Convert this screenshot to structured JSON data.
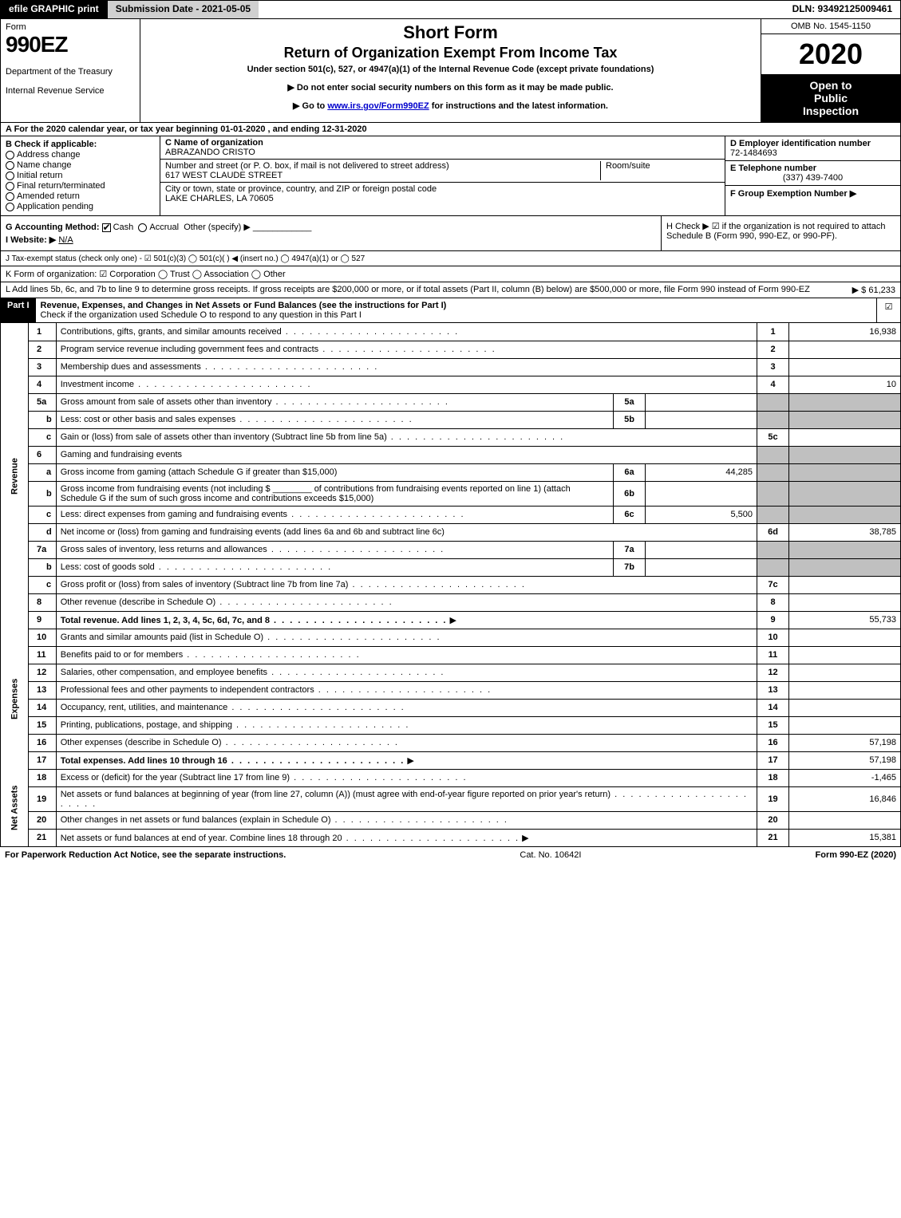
{
  "topbar": {
    "efile": "efile GRAPHIC print",
    "submission_label": "Submission Date - 2021-05-05",
    "dln": "DLN: 93492125009461"
  },
  "header": {
    "form_word": "Form",
    "form_number": "990EZ",
    "dept1": "Department of the Treasury",
    "dept2": "Internal Revenue Service",
    "title1": "Short Form",
    "title2": "Return of Organization Exempt From Income Tax",
    "under": "Under section 501(c), 527, or 4947(a)(1) of the Internal Revenue Code (except private foundations)",
    "notice1": "▶ Do not enter social security numbers on this form as it may be made public.",
    "notice2_pre": "▶ Go to ",
    "notice2_link": "www.irs.gov/Form990EZ",
    "notice2_post": " for instructions and the latest information.",
    "omb": "OMB No. 1545-1150",
    "year": "2020",
    "open1": "Open to",
    "open2": "Public",
    "open3": "Inspection"
  },
  "A": {
    "text": "A For the 2020 calendar year, or tax year beginning 01-01-2020 , and ending 12-31-2020"
  },
  "B": {
    "label": "B Check if applicable:",
    "opts": [
      "Address change",
      "Name change",
      "Initial return",
      "Final return/terminated",
      "Amended return",
      "Application pending"
    ]
  },
  "C": {
    "name_lbl": "C Name of organization",
    "name": "ABRAZANDO CRISTO",
    "addr_lbl": "Number and street (or P. O. box, if mail is not delivered to street address)",
    "addr": "617 WEST CLAUDE STREET",
    "room_lbl": "Room/suite",
    "city_lbl": "City or town, state or province, country, and ZIP or foreign postal code",
    "city": "LAKE CHARLES, LA  70605"
  },
  "D": {
    "lbl": "D Employer identification number",
    "val": "72-1484693"
  },
  "E": {
    "lbl": "E Telephone number",
    "val": "(337) 439-7400"
  },
  "F": {
    "lbl": "F Group Exemption Number  ▶"
  },
  "G": {
    "lbl": "G Accounting Method:",
    "cash": "Cash",
    "accrual": "Accrual",
    "other": "Other (specify) ▶"
  },
  "H": {
    "text": "H Check ▶ ☑ if the organization is not required to attach Schedule B (Form 990, 990-EZ, or 990-PF)."
  },
  "I": {
    "lbl": "I Website: ▶",
    "val": "N/A"
  },
  "J": {
    "text": "J Tax-exempt status (check only one) - ☑ 501(c)(3)  ◯ 501(c)(  ) ◀ (insert no.)  ◯ 4947(a)(1) or  ◯ 527"
  },
  "K": {
    "text": "K Form of organization:  ☑ Corporation  ◯ Trust  ◯ Association  ◯ Other"
  },
  "L": {
    "text": "L Add lines 5b, 6c, and 7b to line 9 to determine gross receipts. If gross receipts are $200,000 or more, or if total assets (Part II, column (B) below) are $500,000 or more, file Form 990 instead of Form 990-EZ",
    "arrow": "▶ $ 61,233"
  },
  "partI": {
    "label": "Part I",
    "title": "Revenue, Expenses, and Changes in Net Assets or Fund Balances (see the instructions for Part I)",
    "sub": "Check if the organization used Schedule O to respond to any question in this Part I",
    "checked": "☑"
  },
  "sections": {
    "revenue": "Revenue",
    "expenses": "Expenses",
    "netassets": "Net Assets"
  },
  "lines": {
    "l1": {
      "n": "1",
      "d": "Contributions, gifts, grants, and similar amounts received",
      "rn": "1",
      "rv": "16,938"
    },
    "l2": {
      "n": "2",
      "d": "Program service revenue including government fees and contracts",
      "rn": "2",
      "rv": ""
    },
    "l3": {
      "n": "3",
      "d": "Membership dues and assessments",
      "rn": "3",
      "rv": ""
    },
    "l4": {
      "n": "4",
      "d": "Investment income",
      "rn": "4",
      "rv": "10"
    },
    "l5a": {
      "n": "5a",
      "d": "Gross amount from sale of assets other than inventory",
      "in": "5a",
      "iv": ""
    },
    "l5b": {
      "n": "b",
      "d": "Less: cost or other basis and sales expenses",
      "in": "5b",
      "iv": ""
    },
    "l5c": {
      "n": "c",
      "d": "Gain or (loss) from sale of assets other than inventory (Subtract line 5b from line 5a)",
      "rn": "5c",
      "rv": ""
    },
    "l6": {
      "n": "6",
      "d": "Gaming and fundraising events"
    },
    "l6a": {
      "n": "a",
      "d": "Gross income from gaming (attach Schedule G if greater than $15,000)",
      "in": "6a",
      "iv": "44,285"
    },
    "l6b": {
      "n": "b",
      "d": "Gross income from fundraising events (not including $ ________ of contributions from fundraising events reported on line 1) (attach Schedule G if the sum of such gross income and contributions exceeds $15,000)",
      "in": "6b",
      "iv": ""
    },
    "l6c": {
      "n": "c",
      "d": "Less: direct expenses from gaming and fundraising events",
      "in": "6c",
      "iv": "5,500"
    },
    "l6d": {
      "n": "d",
      "d": "Net income or (loss) from gaming and fundraising events (add lines 6a and 6b and subtract line 6c)",
      "rn": "6d",
      "rv": "38,785"
    },
    "l7a": {
      "n": "7a",
      "d": "Gross sales of inventory, less returns and allowances",
      "in": "7a",
      "iv": ""
    },
    "l7b": {
      "n": "b",
      "d": "Less: cost of goods sold",
      "in": "7b",
      "iv": ""
    },
    "l7c": {
      "n": "c",
      "d": "Gross profit or (loss) from sales of inventory (Subtract line 7b from line 7a)",
      "rn": "7c",
      "rv": ""
    },
    "l8": {
      "n": "8",
      "d": "Other revenue (describe in Schedule O)",
      "rn": "8",
      "rv": ""
    },
    "l9": {
      "n": "9",
      "d": "Total revenue. Add lines 1, 2, 3, 4, 5c, 6d, 7c, and 8",
      "rn": "9",
      "rv": "55,733",
      "bold": true,
      "arrow": true
    },
    "l10": {
      "n": "10",
      "d": "Grants and similar amounts paid (list in Schedule O)",
      "rn": "10",
      "rv": ""
    },
    "l11": {
      "n": "11",
      "d": "Benefits paid to or for members",
      "rn": "11",
      "rv": ""
    },
    "l12": {
      "n": "12",
      "d": "Salaries, other compensation, and employee benefits",
      "rn": "12",
      "rv": ""
    },
    "l13": {
      "n": "13",
      "d": "Professional fees and other payments to independent contractors",
      "rn": "13",
      "rv": ""
    },
    "l14": {
      "n": "14",
      "d": "Occupancy, rent, utilities, and maintenance",
      "rn": "14",
      "rv": ""
    },
    "l15": {
      "n": "15",
      "d": "Printing, publications, postage, and shipping",
      "rn": "15",
      "rv": ""
    },
    "l16": {
      "n": "16",
      "d": "Other expenses (describe in Schedule O)",
      "rn": "16",
      "rv": "57,198"
    },
    "l17": {
      "n": "17",
      "d": "Total expenses. Add lines 10 through 16",
      "rn": "17",
      "rv": "57,198",
      "bold": true,
      "arrow": true
    },
    "l18": {
      "n": "18",
      "d": "Excess or (deficit) for the year (Subtract line 17 from line 9)",
      "rn": "18",
      "rv": "-1,465"
    },
    "l19": {
      "n": "19",
      "d": "Net assets or fund balances at beginning of year (from line 27, column (A)) (must agree with end-of-year figure reported on prior year's return)",
      "rn": "19",
      "rv": "16,846"
    },
    "l20": {
      "n": "20",
      "d": "Other changes in net assets or fund balances (explain in Schedule O)",
      "rn": "20",
      "rv": ""
    },
    "l21": {
      "n": "21",
      "d": "Net assets or fund balances at end of year. Combine lines 18 through 20",
      "rn": "21",
      "rv": "15,381",
      "arrow": true
    }
  },
  "footer": {
    "left": "For Paperwork Reduction Act Notice, see the separate instructions.",
    "mid": "Cat. No. 10642I",
    "right": "Form 990-EZ (2020)"
  },
  "colors": {
    "black": "#000000",
    "white": "#ffffff",
    "gray_bg": "#d0d0d0",
    "shade": "#c0c0c0",
    "link": "#0000cc"
  }
}
